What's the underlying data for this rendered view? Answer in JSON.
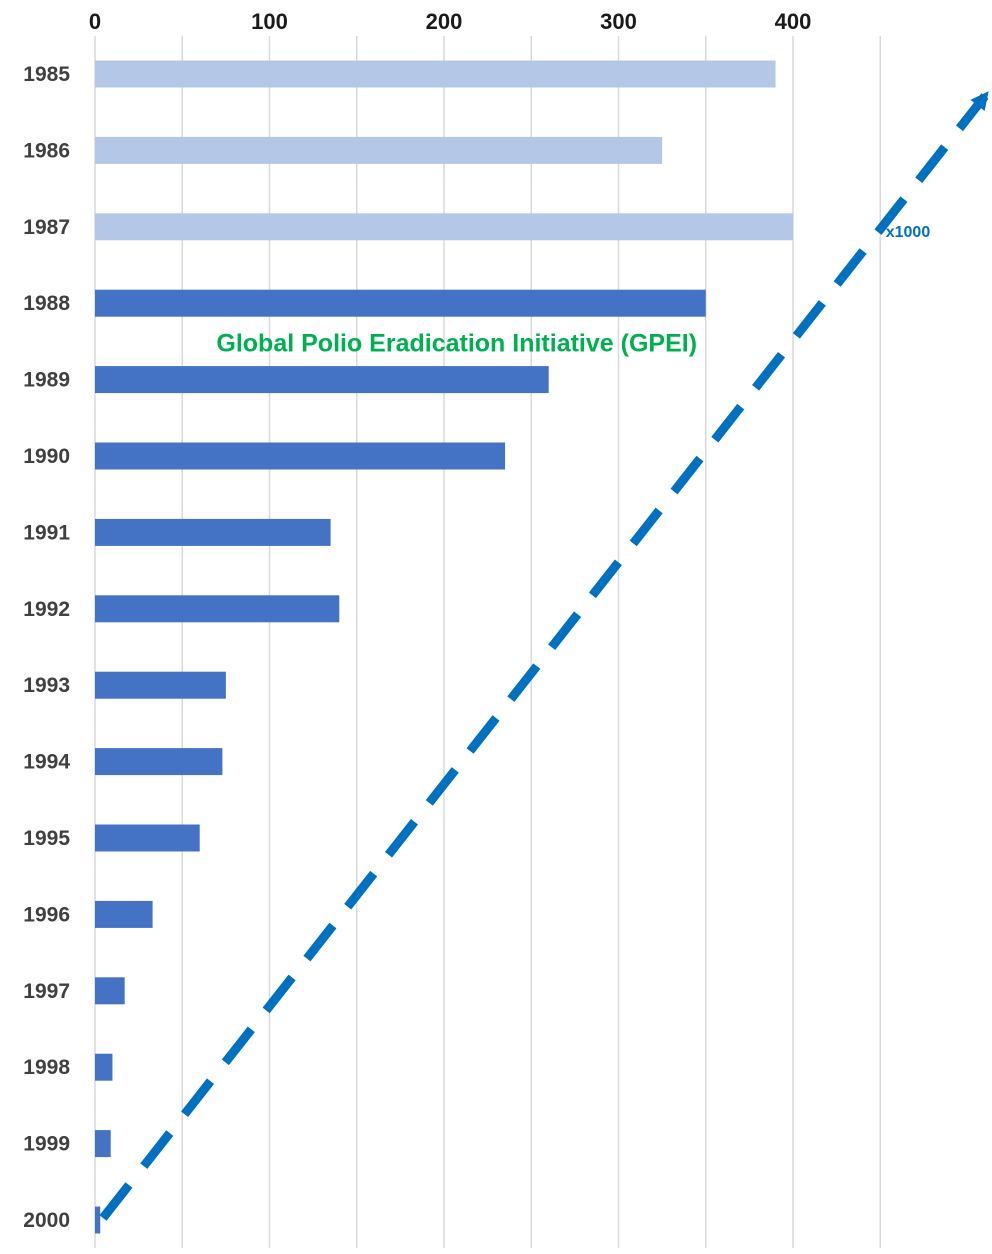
{
  "chart_data": {
    "type": "bar",
    "orientation": "horizontal",
    "categories": [
      "1985",
      "1986",
      "1987",
      "1988",
      "1989",
      "1990",
      "1991",
      "1992",
      "1993",
      "1994",
      "1995",
      "1996",
      "1997",
      "1998",
      "1999",
      "2000"
    ],
    "values": [
      390,
      325,
      400,
      350,
      260,
      235,
      135,
      140,
      75,
      73,
      60,
      33,
      17,
      10,
      9,
      3
    ],
    "xlim": [
      0,
      450
    ],
    "x_ticks": [
      "0",
      "100",
      "200",
      "300",
      "400"
    ],
    "x_tick_values": [
      0,
      100,
      200,
      300,
      400
    ],
    "grid_values": [
      0,
      50,
      100,
      150,
      200,
      250,
      300,
      350,
      400,
      450
    ],
    "grid": true,
    "x_axis_position": "top",
    "title": "",
    "xlabel": "",
    "ylabel": "",
    "colors": {
      "pre_initiative": "#b4c7e7",
      "post_initiative": "#4472c4",
      "gridline": "#d9d9d9",
      "trend_line": "#0070c0",
      "gpei_annotation": "#00b050",
      "multiplier_annotation": "#0070c0"
    },
    "highlight_from_category": "1988",
    "trend_line": {
      "style": "dashed",
      "from": {
        "x": 0,
        "category": "2000"
      },
      "to": {
        "x": 510,
        "category": "1985"
      }
    },
    "annotations": {
      "gpei": {
        "text": "Global Polio Eradication Initiative (GPEI)",
        "x": 205,
        "category_between": [
          "1988",
          "1989"
        ]
      },
      "multiplier": {
        "text": "x1000",
        "x": 452,
        "category_between": [
          "1987",
          "1988"
        ]
      }
    }
  }
}
